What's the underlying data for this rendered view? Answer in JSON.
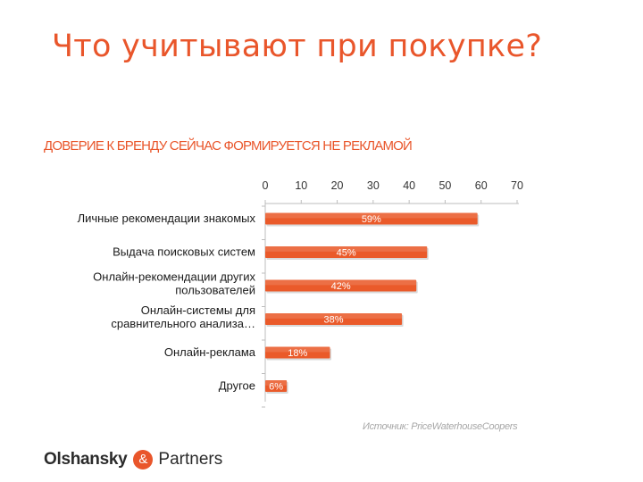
{
  "slide": {
    "title": "Что учитывают при покупке?",
    "subtitle": "ДОВЕРИЕ К БРЕНДУ СЕЙЧАС ФОРМИРУЕТСЯ НЕ РЕКЛАМОЙ",
    "source": "Источник: PriceWaterhouseCoopers"
  },
  "logo": {
    "left": "Olshansky",
    "amp": "&",
    "right": "Partners"
  },
  "colors": {
    "accent": "#e9562b",
    "bar": "#ea5a2a",
    "axis": "#bdbdbd"
  },
  "chart_data": {
    "type": "bar",
    "orientation": "horizontal",
    "title": "ДОВЕРИЕ К БРЕНДУ СЕЙЧАС ФОРМИРУЕТСЯ НЕ РЕКЛАМОЙ",
    "xlabel": "",
    "ylabel": "",
    "xlim": [
      0,
      70
    ],
    "xticks": [
      "0",
      "10",
      "20",
      "30",
      "40",
      "50",
      "60",
      "70"
    ],
    "xaxis_position": "top",
    "categories": [
      [
        "Личные рекомендации знакомых"
      ],
      [
        "Выдача поисковых систем"
      ],
      [
        "Онлайн-рекомендации других",
        "пользователей"
      ],
      [
        "Онлайн-системы для",
        "сравнительного анализа…"
      ],
      [
        "Онлайн-реклама"
      ],
      [
        "Другое"
      ]
    ],
    "values": [
      59,
      45,
      42,
      38,
      18,
      6
    ],
    "data_labels": [
      "59%",
      "45%",
      "42%",
      "38%",
      "18%",
      "6%"
    ],
    "grid": false
  }
}
